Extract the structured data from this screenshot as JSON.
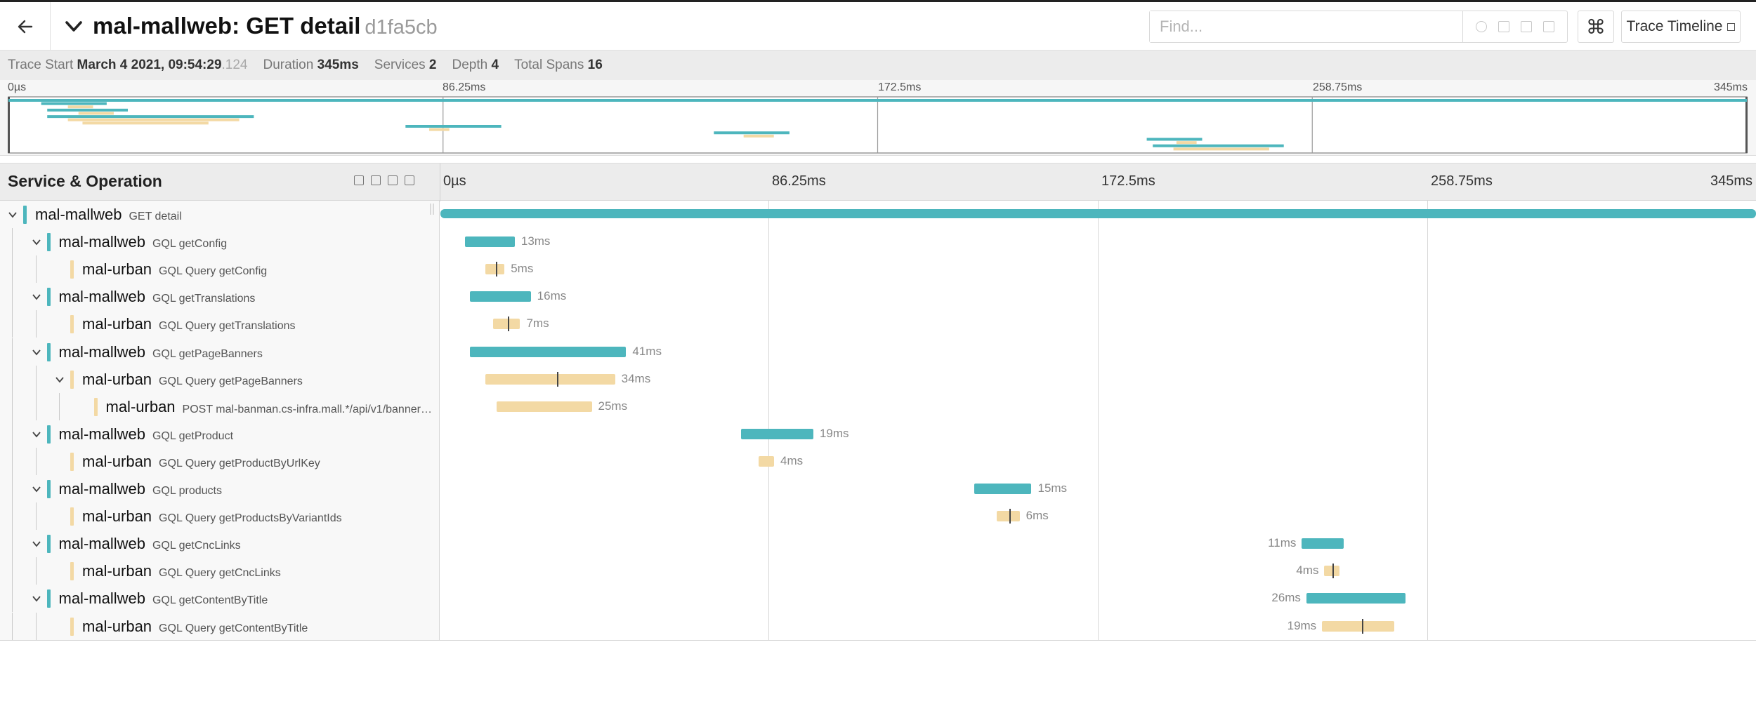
{
  "header": {
    "title": "mal-mallweb: GET detail",
    "trace_id": "d1fa5cb",
    "find_placeholder": "Find...",
    "keyboard_symbol": "⌘",
    "view_label": "Trace Timeline"
  },
  "summary": {
    "trace_start_label": "Trace Start",
    "trace_start_value": "March 4 2021, 09:54:29",
    "trace_start_ms": ".124",
    "duration_label": "Duration",
    "duration_value": "345ms",
    "services_label": "Services",
    "services_value": "2",
    "depth_label": "Depth",
    "depth_value": "4",
    "total_spans_label": "Total Spans",
    "total_spans_value": "16"
  },
  "timeline": {
    "ticks": [
      "0µs",
      "86.25ms",
      "172.5ms",
      "258.75ms",
      "345ms"
    ],
    "total_ms": 345
  },
  "detail": {
    "left_title": "Service & Operation"
  },
  "colors": {
    "mallweb": "#4db6bd",
    "urban": "#f3d9a4"
  },
  "spans": [
    {
      "service": "mal-mallweb",
      "operation": "GET detail",
      "depth": 0,
      "collapsible": true,
      "color": "mallweb",
      "start_ms": 0,
      "duration_ms": 345,
      "label": "",
      "label_side": "none",
      "log": false
    },
    {
      "service": "mal-mallweb",
      "operation": "GQL getConfig",
      "depth": 1,
      "collapsible": true,
      "color": "mallweb",
      "start_ms": 6.5,
      "duration_ms": 13,
      "label": "13ms",
      "label_side": "right",
      "log": false
    },
    {
      "service": "mal-urban",
      "operation": "GQL Query getConfig",
      "depth": 2,
      "collapsible": false,
      "color": "urban",
      "start_ms": 11.8,
      "duration_ms": 5,
      "label": "5ms",
      "label_side": "right",
      "log": true
    },
    {
      "service": "mal-mallweb",
      "operation": "GQL getTranslations",
      "depth": 1,
      "collapsible": true,
      "color": "mallweb",
      "start_ms": 7.7,
      "duration_ms": 16,
      "label": "16ms",
      "label_side": "right",
      "log": false
    },
    {
      "service": "mal-urban",
      "operation": "GQL Query getTranslations",
      "depth": 2,
      "collapsible": false,
      "color": "urban",
      "start_ms": 13.9,
      "duration_ms": 7,
      "label": "7ms",
      "label_side": "right",
      "log": true
    },
    {
      "service": "mal-mallweb",
      "operation": "GQL getPageBanners",
      "depth": 1,
      "collapsible": true,
      "color": "mallweb",
      "start_ms": 7.7,
      "duration_ms": 41,
      "label": "41ms",
      "label_side": "right",
      "log": false
    },
    {
      "service": "mal-urban",
      "operation": "GQL Query getPageBanners",
      "depth": 2,
      "collapsible": true,
      "color": "urban",
      "start_ms": 11.8,
      "duration_ms": 34,
      "label": "34ms",
      "label_side": "right",
      "log": true
    },
    {
      "service": "mal-urban",
      "operation": "POST mal-banman.cs-infra.mall.*/api/v1/banners…",
      "depth": 3,
      "collapsible": false,
      "color": "urban",
      "start_ms": 14.7,
      "duration_ms": 25,
      "label": "25ms",
      "label_side": "right",
      "log": false
    },
    {
      "service": "mal-mallweb",
      "operation": "GQL getProduct",
      "depth": 1,
      "collapsible": true,
      "color": "mallweb",
      "start_ms": 78.8,
      "duration_ms": 19,
      "label": "19ms",
      "label_side": "right",
      "log": false
    },
    {
      "service": "mal-urban",
      "operation": "GQL Query getProductByUrlKey",
      "depth": 2,
      "collapsible": false,
      "color": "urban",
      "start_ms": 83.5,
      "duration_ms": 4,
      "label": "4ms",
      "label_side": "right",
      "log": false
    },
    {
      "service": "mal-mallweb",
      "operation": "GQL products",
      "depth": 1,
      "collapsible": true,
      "color": "mallweb",
      "start_ms": 140,
      "duration_ms": 15,
      "label": "15ms",
      "label_side": "right",
      "log": false
    },
    {
      "service": "mal-urban",
      "operation": "GQL Query getProductsByVariantIds",
      "depth": 2,
      "collapsible": false,
      "color": "urban",
      "start_ms": 145.9,
      "duration_ms": 6,
      "label": "6ms",
      "label_side": "right",
      "log": true
    },
    {
      "service": "mal-mallweb",
      "operation": "GQL getCncLinks",
      "depth": 1,
      "collapsible": true,
      "color": "mallweb",
      "start_ms": 225.9,
      "duration_ms": 11,
      "label": "11ms",
      "label_side": "left",
      "log": false
    },
    {
      "service": "mal-urban",
      "operation": "GQL Query getCncLinks",
      "depth": 2,
      "collapsible": false,
      "color": "urban",
      "start_ms": 231.8,
      "duration_ms": 4,
      "label": "4ms",
      "label_side": "left",
      "log": true
    },
    {
      "service": "mal-mallweb",
      "operation": "GQL getContentByTitle",
      "depth": 1,
      "collapsible": true,
      "color": "mallweb",
      "start_ms": 227.1,
      "duration_ms": 26,
      "label": "26ms",
      "label_side": "left",
      "log": false
    },
    {
      "service": "mal-urban",
      "operation": "GQL Query getContentByTitle",
      "depth": 2,
      "collapsible": false,
      "color": "urban",
      "start_ms": 231.2,
      "duration_ms": 19,
      "label": "19ms",
      "label_side": "left",
      "log": true
    }
  ]
}
